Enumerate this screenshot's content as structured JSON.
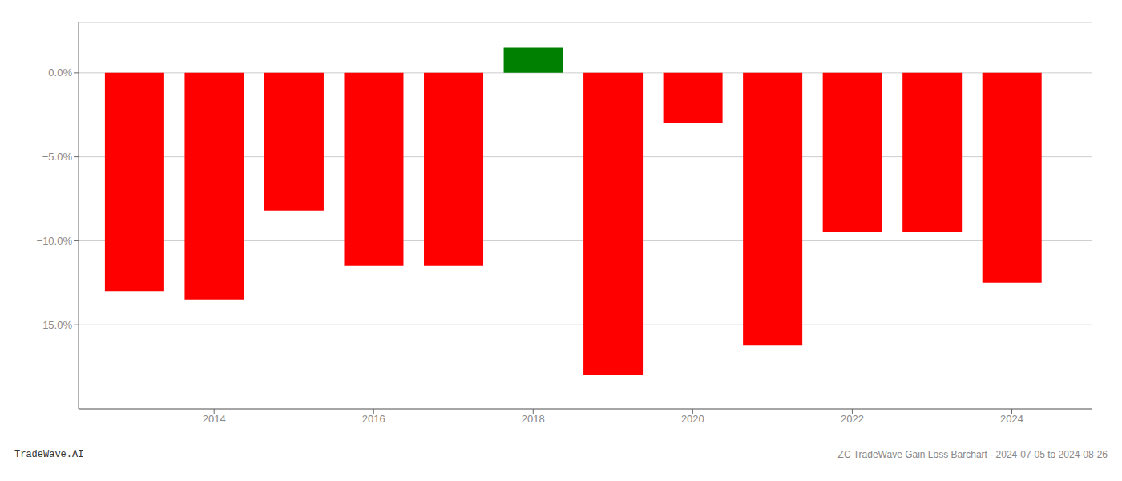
{
  "chart_data": {
    "type": "bar",
    "x": [
      2013,
      2014,
      2015,
      2016,
      2017,
      2018,
      2019,
      2020,
      2021,
      2022,
      2023,
      2024
    ],
    "values": [
      -13.0,
      -13.5,
      -8.2,
      -11.5,
      -11.5,
      1.5,
      -18.0,
      -3.0,
      -16.2,
      -9.5,
      -9.5,
      -12.5
    ],
    "colors": [
      "#ff0000",
      "#ff0000",
      "#ff0000",
      "#ff0000",
      "#ff0000",
      "#008000",
      "#ff0000",
      "#ff0000",
      "#ff0000",
      "#ff0000",
      "#ff0000",
      "#ff0000"
    ],
    "xlim": [
      2012.3,
      2025.0
    ],
    "xticks": [
      2014,
      2016,
      2018,
      2020,
      2022,
      2024
    ],
    "ylim": [
      -20,
      3
    ],
    "yticks": [
      {
        "value": 0.0,
        "label": "0.0%"
      },
      {
        "value": -5.0,
        "label": "−5.0%"
      },
      {
        "value": -10.0,
        "label": "−10.0%"
      },
      {
        "value": -15.0,
        "label": "−15.0%"
      }
    ],
    "grid": true,
    "annotations": [
      "TradeWave.AI",
      "ZC TradeWave Gain Loss Barchart - 2024-07-05 to 2024-08-26"
    ]
  }
}
